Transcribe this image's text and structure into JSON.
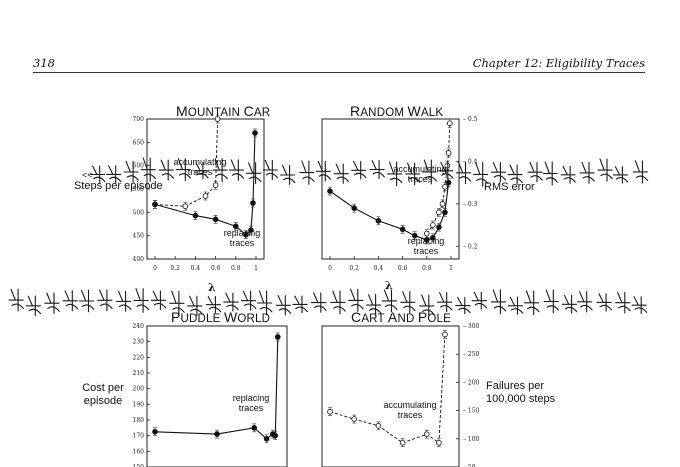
{
  "header": {
    "page_number": "318",
    "chapter_title": "Chapter 12: Eligibility Traces"
  },
  "handwriting": {
    "line1": "<<猪布斯>>森林的模单上以前有你的心情，有的痛泪化",
    "line2": "倒海汪地流溃，黄芦苦竹绕宅生，其间旦暮闻何物，都是些伤心"
  },
  "chart_data": [
    {
      "title": "MOUNTAIN CAR",
      "type": "line",
      "ylabel": "Steps per episode",
      "xlabel": "λ",
      "x_ticks": [
        "0",
        "0.2",
        "0.4",
        "0.6",
        "0.8",
        "1"
      ],
      "y_ticks": [
        "400",
        "450",
        "500",
        "550",
        "600",
        "650",
        "700"
      ],
      "xlim": [
        0,
        1
      ],
      "ylim": [
        400,
        700
      ],
      "series": [
        {
          "name": "accumulating traces",
          "style": "dashed-open",
          "x": [
            0,
            0.3,
            0.5,
            0.6,
            0.62
          ],
          "y": [
            517,
            513,
            535,
            558,
            700
          ]
        },
        {
          "name": "replacing traces",
          "style": "solid-filled",
          "x": [
            0,
            0.4,
            0.6,
            0.8,
            0.9,
            0.95,
            0.97,
            0.99
          ],
          "y": [
            517,
            493,
            485,
            470,
            452,
            462,
            520,
            670
          ]
        }
      ]
    },
    {
      "title": "RANDOM WALK",
      "type": "line",
      "ylabel": "RMS error",
      "xlabel": "λ",
      "x_ticks": [
        "0",
        "0.2",
        "0.4",
        "0.6",
        "0.8",
        "1"
      ],
      "y_ticks": [
        "0.2",
        "0.3",
        "0.4",
        "0.5"
      ],
      "xlim": [
        0,
        1
      ],
      "ylim": [
        0.17,
        0.5
      ],
      "series": [
        {
          "name": "accumulating traces",
          "style": "dashed-open",
          "x": [
            0.8,
            0.85,
            0.9,
            0.93,
            0.95,
            0.97,
            0.98,
            0.99
          ],
          "y": [
            0.23,
            0.25,
            0.28,
            0.3,
            0.34,
            0.39,
            0.42,
            0.49
          ]
        },
        {
          "name": "replacing traces",
          "style": "solid-filled",
          "x": [
            0,
            0.2,
            0.4,
            0.6,
            0.7,
            0.8,
            0.85,
            0.9,
            0.95,
            0.98
          ],
          "y": [
            0.33,
            0.29,
            0.26,
            0.24,
            0.225,
            0.215,
            0.22,
            0.245,
            0.28,
            0.35
          ]
        }
      ]
    },
    {
      "title": "PUDDLE WORLD",
      "type": "line",
      "ylabel": "Cost per episode",
      "xlabel": "λ",
      "y_ticks": [
        "150",
        "160",
        "170",
        "180",
        "190",
        "200",
        "210",
        "220",
        "230",
        "240"
      ],
      "xlim": [
        0,
        1
      ],
      "ylim": [
        150,
        240
      ],
      "series": [
        {
          "name": "replacing traces",
          "style": "solid-filled",
          "x": [
            0,
            0.5,
            0.8,
            0.9,
            0.95,
            0.97,
            0.99
          ],
          "y": [
            172.5,
            171,
            175,
            168,
            171,
            170,
            233
          ]
        }
      ]
    },
    {
      "title": "CART AND POLE",
      "type": "line",
      "ylabel": "Failures per 100,000 steps",
      "xlabel": "λ",
      "y_ticks": [
        "50",
        "100",
        "150",
        "200",
        "250",
        "300"
      ],
      "xlim": [
        0,
        1
      ],
      "ylim": [
        50,
        300
      ],
      "series": [
        {
          "name": "accumulating traces",
          "style": "dashed-open",
          "x": [
            0,
            0.2,
            0.4,
            0.6,
            0.8,
            0.9,
            0.95
          ],
          "y": [
            148,
            135,
            123,
            93,
            108,
            93,
            285
          ]
        }
      ]
    }
  ]
}
